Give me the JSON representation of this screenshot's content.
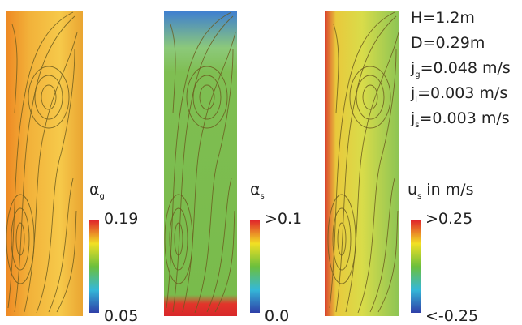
{
  "panels": [
    {
      "symbol": "α",
      "subscript": "g",
      "max_label": "0.19",
      "min_label": "0.05"
    },
    {
      "symbol": "α",
      "subscript": "s",
      "max_label": ">0.1",
      "min_label": "0.0"
    },
    {
      "symbol": "u",
      "subscript": "s",
      "unit": " in m/s",
      "max_label": ">0.25",
      "min_label": "<-0.25"
    }
  ],
  "parameters": [
    {
      "text": "H=1.2m"
    },
    {
      "text": "D=0.29m"
    },
    {
      "symbol": "j",
      "subscript": "g",
      "text": "=0.048 m/s"
    },
    {
      "symbol": "j",
      "subscript": "l",
      "text": "=0.003 m/s"
    },
    {
      "symbol": "j",
      "subscript": "s",
      "text": "=0.003 m/s"
    }
  ]
}
